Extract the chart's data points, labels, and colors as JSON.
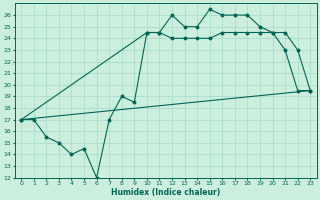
{
  "xlabel": "Humidex (Indice chaleur)",
  "xlim": [
    -0.5,
    23.5
  ],
  "ylim": [
    12,
    27
  ],
  "xticks": [
    0,
    1,
    2,
    3,
    4,
    5,
    6,
    7,
    8,
    9,
    10,
    11,
    12,
    13,
    14,
    15,
    16,
    17,
    18,
    19,
    20,
    21,
    22,
    23
  ],
  "yticks": [
    12,
    13,
    14,
    15,
    16,
    17,
    18,
    19,
    20,
    21,
    22,
    23,
    24,
    25,
    26
  ],
  "bg_color": "#cceedd",
  "line_color": "#006655",
  "grid_color": "#aaddcc",
  "curve1_x": [
    0,
    1,
    2,
    3,
    4,
    5,
    6,
    7,
    8,
    9,
    10,
    11,
    12,
    13,
    14,
    15,
    16,
    17,
    18,
    19,
    20,
    21,
    22,
    23
  ],
  "curve1_y": [
    17,
    17,
    15.5,
    15,
    14,
    14.5,
    12,
    17,
    19,
    18.5,
    24.5,
    24.5,
    26,
    25,
    25,
    26.5,
    26,
    26,
    26,
    25,
    24.5,
    24.5,
    23,
    19.5
  ],
  "curve2_x": [
    0,
    23
  ],
  "curve2_y": [
    17,
    19.5
  ],
  "curve3_x": [
    0,
    10,
    11,
    12,
    13,
    14,
    15,
    16,
    17,
    18,
    19,
    20,
    21,
    22,
    23
  ],
  "curve3_y": [
    17,
    24.5,
    24.5,
    24,
    24,
    24,
    24,
    24.5,
    24.5,
    24.5,
    24.5,
    24.5,
    23,
    19.5,
    19.5
  ]
}
